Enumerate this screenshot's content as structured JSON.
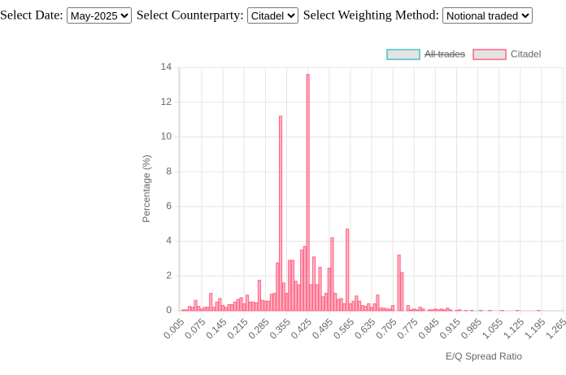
{
  "controls": [
    {
      "label": "Select Date:",
      "value": "May-2025"
    },
    {
      "label": "Select Counterparty:",
      "value": "Citadel"
    },
    {
      "label": "Select Weighting Method:",
      "value": "Notional traded"
    }
  ],
  "chart_data": {
    "type": "bar",
    "xlabel": "E/Q Spread Ratio",
    "ylabel": "Percentage (%)",
    "categories": [
      "0.005",
      null,
      null,
      null,
      null,
      null,
      null,
      "0.075",
      null,
      null,
      null,
      null,
      null,
      null,
      "0.145",
      null,
      null,
      null,
      null,
      null,
      null,
      "0.215",
      null,
      null,
      null,
      null,
      null,
      null,
      "0.285",
      null,
      null,
      null,
      null,
      null,
      null,
      "0.355",
      null,
      null,
      null,
      null,
      null,
      null,
      "0.425",
      null,
      null,
      null,
      null,
      null,
      null,
      "0.495",
      null,
      null,
      null,
      null,
      null,
      null,
      "0.565",
      null,
      null,
      null,
      null,
      null,
      null,
      "0.635",
      null,
      null,
      null,
      null,
      null,
      null,
      "0.705",
      null,
      null,
      null,
      null,
      null,
      null,
      "0.775",
      null,
      null,
      null,
      null,
      null,
      null,
      "0.845",
      null,
      null,
      null,
      null,
      null,
      null,
      "0.915",
      null,
      null,
      null,
      null,
      null,
      null,
      "0.985",
      null,
      null,
      null,
      null,
      null,
      null,
      "1.055",
      null,
      null,
      null,
      null,
      null,
      null,
      "1.125",
      null,
      null,
      null,
      null,
      null,
      null,
      "1.195",
      null,
      null,
      null,
      null,
      null,
      null,
      "1.265"
    ],
    "series": [
      {
        "name": "All trades",
        "color": "#4bc0c0",
        "hidden": true
      },
      {
        "name": "Citadel",
        "color": "#ff6384",
        "hidden": false,
        "values": [
          0,
          0.05,
          0.05,
          0.25,
          0.2,
          0.6,
          0.25,
          0.1,
          0.2,
          0.2,
          1.0,
          0.2,
          0.5,
          0.7,
          0.3,
          0.2,
          0.35,
          0.35,
          0.5,
          0.65,
          0.75,
          0.4,
          0.9,
          0.5,
          0.5,
          0.45,
          1.75,
          0.6,
          0.55,
          0.55,
          0.95,
          1.0,
          2.75,
          11.2,
          1.6,
          1.0,
          2.9,
          2.9,
          1.7,
          1.5,
          3.5,
          3.7,
          13.6,
          1.5,
          3.1,
          1.5,
          2.5,
          0.8,
          1.0,
          2.45,
          4.2,
          1.0,
          0.65,
          0.7,
          0.4,
          4.7,
          0.4,
          0.55,
          0.85,
          0.55,
          0.3,
          0.25,
          0.4,
          0.2,
          0.4,
          0.9,
          0.15,
          0.15,
          0.1,
          0.1,
          0.3,
          0,
          3.2,
          2.2,
          0,
          0.3,
          0.05,
          0.1,
          0.05,
          0.2,
          0.1,
          0,
          0.05,
          0.05,
          0.1,
          0.05,
          0.1,
          0.05,
          0.15,
          0.05,
          0,
          0.02,
          0.05,
          0,
          0.02,
          0,
          0.02,
          0,
          0,
          0.02,
          0,
          0,
          0.02,
          0,
          0,
          0,
          0.02,
          0,
          0,
          0,
          0,
          0.02,
          0,
          0,
          0,
          0,
          0,
          0,
          0.02,
          0,
          0,
          0,
          0,
          0,
          0,
          0,
          0
        ]
      }
    ],
    "ylim": [
      0,
      14
    ],
    "yticks": [
      0,
      2,
      4,
      6,
      8,
      10,
      12,
      14
    ],
    "grid": true,
    "legend": "top-right"
  }
}
